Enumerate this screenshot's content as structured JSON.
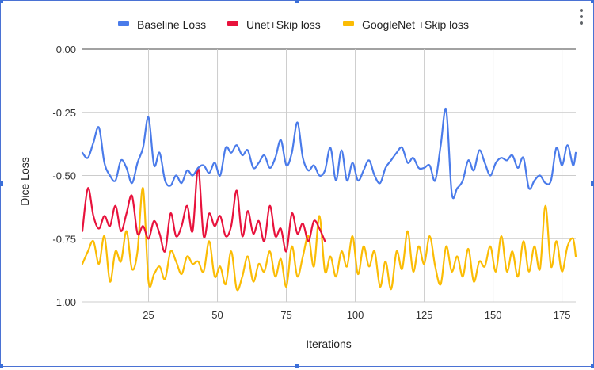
{
  "menu": {
    "icon": "more-vert-icon"
  },
  "chart_data": {
    "type": "line",
    "title": "",
    "xlabel": "Iterations",
    "ylabel": "Dice Loss",
    "xlim": [
      1,
      180
    ],
    "ylim": [
      -1.0,
      0.0
    ],
    "xticks": [
      "25",
      "50",
      "75",
      "100",
      "125",
      "150",
      "175"
    ],
    "yticks": [
      "0.00",
      "-0.25",
      "-0.50",
      "-0.75",
      "-1.00"
    ],
    "grid": true,
    "legend_position": "top",
    "series": [
      {
        "name": "Baseline Loss",
        "color": "#4a7bea",
        "x": [
          1,
          3,
          5,
          7,
          9,
          11,
          13,
          15,
          17,
          19,
          21,
          23,
          25,
          27,
          29,
          31,
          33,
          35,
          37,
          39,
          41,
          43,
          45,
          47,
          49,
          51,
          53,
          55,
          57,
          59,
          61,
          63,
          65,
          67,
          69,
          71,
          73,
          75,
          77,
          79,
          81,
          83,
          85,
          87,
          89,
          91,
          93,
          95,
          97,
          99,
          101,
          103,
          105,
          107,
          109,
          111,
          113,
          115,
          117,
          119,
          121,
          123,
          125,
          127,
          129,
          131,
          133,
          135,
          137,
          139,
          141,
          143,
          145,
          147,
          149,
          151,
          153,
          155,
          157,
          159,
          161,
          163,
          165,
          167,
          169,
          171,
          173,
          175,
          177,
          179,
          180
        ],
        "values": [
          -0.41,
          -0.43,
          -0.37,
          -0.31,
          -0.45,
          -0.5,
          -0.52,
          -0.44,
          -0.47,
          -0.53,
          -0.45,
          -0.39,
          -0.27,
          -0.46,
          -0.41,
          -0.52,
          -0.54,
          -0.5,
          -0.53,
          -0.48,
          -0.5,
          -0.47,
          -0.46,
          -0.49,
          -0.45,
          -0.5,
          -0.39,
          -0.41,
          -0.38,
          -0.42,
          -0.4,
          -0.47,
          -0.45,
          -0.42,
          -0.47,
          -0.43,
          -0.36,
          -0.46,
          -0.41,
          -0.29,
          -0.43,
          -0.48,
          -0.46,
          -0.5,
          -0.48,
          -0.39,
          -0.52,
          -0.4,
          -0.52,
          -0.45,
          -0.52,
          -0.48,
          -0.44,
          -0.5,
          -0.53,
          -0.47,
          -0.44,
          -0.41,
          -0.39,
          -0.45,
          -0.43,
          -0.47,
          -0.47,
          -0.46,
          -0.52,
          -0.38,
          -0.24,
          -0.57,
          -0.55,
          -0.52,
          -0.44,
          -0.48,
          -0.4,
          -0.45,
          -0.5,
          -0.45,
          -0.43,
          -0.44,
          -0.42,
          -0.47,
          -0.43,
          -0.55,
          -0.52,
          -0.5,
          -0.53,
          -0.52,
          -0.39,
          -0.46,
          -0.38,
          -0.46,
          -0.41
        ]
      },
      {
        "name": "Unet+Skip loss",
        "color": "#e8123c",
        "x": [
          1,
          3,
          5,
          7,
          9,
          11,
          13,
          15,
          17,
          19,
          21,
          23,
          25,
          27,
          29,
          31,
          33,
          35,
          37,
          39,
          41,
          43,
          45,
          47,
          49,
          51,
          53,
          55,
          57,
          59,
          61,
          63,
          65,
          67,
          69,
          71,
          73,
          75,
          77,
          79,
          81,
          83,
          85,
          87,
          89
        ],
        "values": [
          -0.72,
          -0.55,
          -0.66,
          -0.71,
          -0.66,
          -0.7,
          -0.62,
          -0.72,
          -0.65,
          -0.58,
          -0.73,
          -0.7,
          -0.75,
          -0.68,
          -0.73,
          -0.8,
          -0.65,
          -0.74,
          -0.7,
          -0.62,
          -0.72,
          -0.47,
          -0.74,
          -0.65,
          -0.7,
          -0.66,
          -0.74,
          -0.7,
          -0.56,
          -0.74,
          -0.64,
          -0.73,
          -0.68,
          -0.76,
          -0.62,
          -0.74,
          -0.71,
          -0.8,
          -0.65,
          -0.73,
          -0.69,
          -0.76,
          -0.68,
          -0.71,
          -0.76
        ]
      },
      {
        "name": "GoogleNet +Skip loss",
        "color": "#fbbc04",
        "x": [
          1,
          3,
          5,
          7,
          9,
          11,
          13,
          15,
          17,
          19,
          21,
          23,
          25,
          27,
          29,
          31,
          33,
          35,
          37,
          39,
          41,
          43,
          45,
          47,
          49,
          51,
          53,
          55,
          57,
          59,
          61,
          63,
          65,
          67,
          69,
          71,
          73,
          75,
          77,
          79,
          81,
          83,
          85,
          87,
          89,
          91,
          93,
          95,
          97,
          99,
          101,
          103,
          105,
          107,
          109,
          111,
          113,
          115,
          117,
          119,
          121,
          123,
          125,
          127,
          129,
          131,
          133,
          135,
          137,
          139,
          141,
          143,
          145,
          147,
          149,
          151,
          153,
          155,
          157,
          159,
          161,
          163,
          165,
          167,
          169,
          171,
          173,
          175,
          177,
          179,
          180
        ],
        "values": [
          -0.85,
          -0.8,
          -0.76,
          -0.85,
          -0.74,
          -0.92,
          -0.8,
          -0.84,
          -0.72,
          -0.87,
          -0.8,
          -0.55,
          -0.92,
          -0.89,
          -0.86,
          -0.91,
          -0.8,
          -0.84,
          -0.89,
          -0.82,
          -0.85,
          -0.84,
          -0.88,
          -0.76,
          -0.9,
          -0.86,
          -0.93,
          -0.8,
          -0.95,
          -0.9,
          -0.82,
          -0.92,
          -0.85,
          -0.88,
          -0.8,
          -0.9,
          -0.83,
          -0.94,
          -0.78,
          -0.9,
          -0.82,
          -0.74,
          -0.86,
          -0.66,
          -0.88,
          -0.82,
          -0.9,
          -0.8,
          -0.86,
          -0.74,
          -0.89,
          -0.78,
          -0.86,
          -0.8,
          -0.94,
          -0.84,
          -0.95,
          -0.8,
          -0.87,
          -0.72,
          -0.88,
          -0.78,
          -0.85,
          -0.74,
          -0.86,
          -0.93,
          -0.78,
          -0.88,
          -0.82,
          -0.9,
          -0.79,
          -0.92,
          -0.84,
          -0.86,
          -0.78,
          -0.88,
          -0.74,
          -0.88,
          -0.8,
          -0.9,
          -0.76,
          -0.88,
          -0.78,
          -0.87,
          -0.62,
          -0.86,
          -0.76,
          -0.88,
          -0.78,
          -0.75,
          -0.82
        ]
      }
    ]
  }
}
